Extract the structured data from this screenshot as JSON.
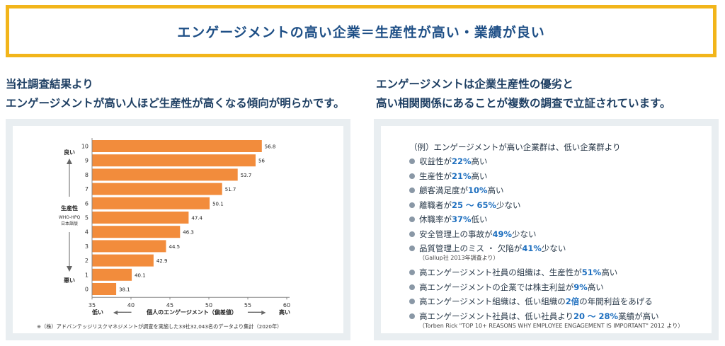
{
  "banner": {
    "title": "エンゲージメントの高い企業＝生産性が高い・業績が良い"
  },
  "left_lead": {
    "line1": "当社調査結果より",
    "line2": "エンゲージメントが高い人ほど生産性が高くなる傾向が明らかです。"
  },
  "right_lead": {
    "line1": "エンゲージメントは企業生産性の優劣と",
    "line2": "高い相関関係にあることが複数の調査で立証されています。"
  },
  "chart_data": {
    "type": "bar",
    "orientation": "horizontal",
    "categories": [
      "10",
      "9",
      "8",
      "7",
      "6",
      "5",
      "4",
      "3",
      "2",
      "1",
      "0"
    ],
    "values": [
      56.8,
      56,
      53.7,
      51.7,
      50.1,
      47.4,
      46.3,
      44.5,
      42.9,
      40.1,
      38.1
    ],
    "value_labels": [
      "56.8",
      "56",
      "53.7",
      "51.7",
      "50.1",
      "47.4",
      "46.3",
      "44.5",
      "42.9",
      "40.1",
      "38.1"
    ],
    "xlim": [
      35,
      60
    ],
    "xticks": [
      "35",
      "40",
      "45",
      "50",
      "55",
      "60"
    ],
    "xlabel": "個人のエンゲージメント（偏差値）",
    "x_low_label": "低い",
    "x_high_label": "高い",
    "x_left_arrow": "◀━━━━",
    "x_right_arrow": "━━━━▶",
    "ylabel": "生産性",
    "ylabel_sub1": "WHO-HPQ",
    "ylabel_sub2": "日本語版",
    "y_top_label": "良い",
    "y_bottom_label": "悪い",
    "bar_color": "#f28c3c",
    "footnote": "※（株）アドバンテッジリスクマネジメントが調査を実施した33社32,043名のデータより集計（2020年）"
  },
  "right_panel": {
    "intro": "（例）エンゲージメントが高い企業群は、低い企業群より",
    "items": [
      {
        "pre": "収益性が",
        "hl": "22%",
        "post": "高い"
      },
      {
        "pre": "生産性が",
        "hl": "21%",
        "post": "高い"
      },
      {
        "pre": "顧客満足度が",
        "hl": "10%",
        "post": "高い"
      },
      {
        "pre": "離職者が",
        "hl": "25 ～ 65%",
        "post": "少ない"
      },
      {
        "pre": "休職率が",
        "hl": "37%",
        "post": "低い"
      },
      {
        "pre": "安全管理上の事故が",
        "hl": "49%",
        "post": "少ない"
      },
      {
        "pre": "品質管理上のミス ・ 欠陥が",
        "hl": "41%",
        "post": "少ない",
        "note": "（Gallup社 2013年調査より）"
      },
      {
        "pre": "高エンゲージメント社員の組織は、生産性が",
        "hl": "51%",
        "post": "高い"
      },
      {
        "pre": "高エンゲージメントの企業では株主利益が",
        "hl": "9%",
        "post": "高い"
      },
      {
        "pre": "高エンゲージメント組織は、低い組織の",
        "hl": "2倍",
        "post": "の年間利益をあげる"
      },
      {
        "pre": "高エンゲージメント社員は、低い社員より",
        "hl": "20 ～ 28%",
        "post": "業績が高い",
        "note": "（Torben Rick \"TOP 10+ REASONS WHY EMPLOYEE ENGAGEMENT IS IMPORTANT\" 2012 より）"
      }
    ]
  }
}
